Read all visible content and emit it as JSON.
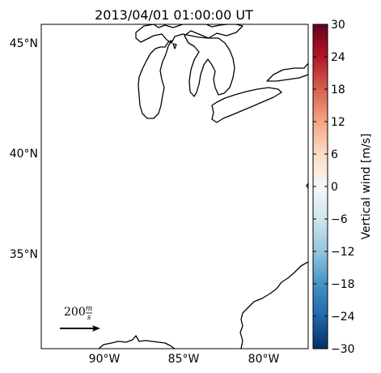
{
  "map": {
    "title": "2013/04/01 01:00:00 UT",
    "lat_labels": [
      "45°N",
      "40°N",
      "35°N"
    ],
    "lon_labels": [
      "90°W",
      "85°W",
      "80°W"
    ],
    "lat_values": [
      45,
      40,
      35
    ],
    "lon_values": [
      -90,
      -85,
      -80
    ],
    "extent": {
      "lon_min": -93.6,
      "lon_max": -77.3,
      "lat_min": 30.1,
      "lat_max": 46.0
    }
  },
  "quiver_key": {
    "value": "200",
    "numerator": "m",
    "denominator": "s"
  },
  "colorbar": {
    "label": "Vertical wind [m/s]",
    "range": [
      -30,
      30
    ],
    "colormap": "RdBu_r",
    "ticks": [
      "30",
      "24",
      "18",
      "12",
      "6",
      "0",
      "−6",
      "−12",
      "−18",
      "−24",
      "−30"
    ],
    "colors": {
      "top": "#67001f",
      "mid": "#f7f7f7",
      "bottom": "#053061"
    }
  }
}
